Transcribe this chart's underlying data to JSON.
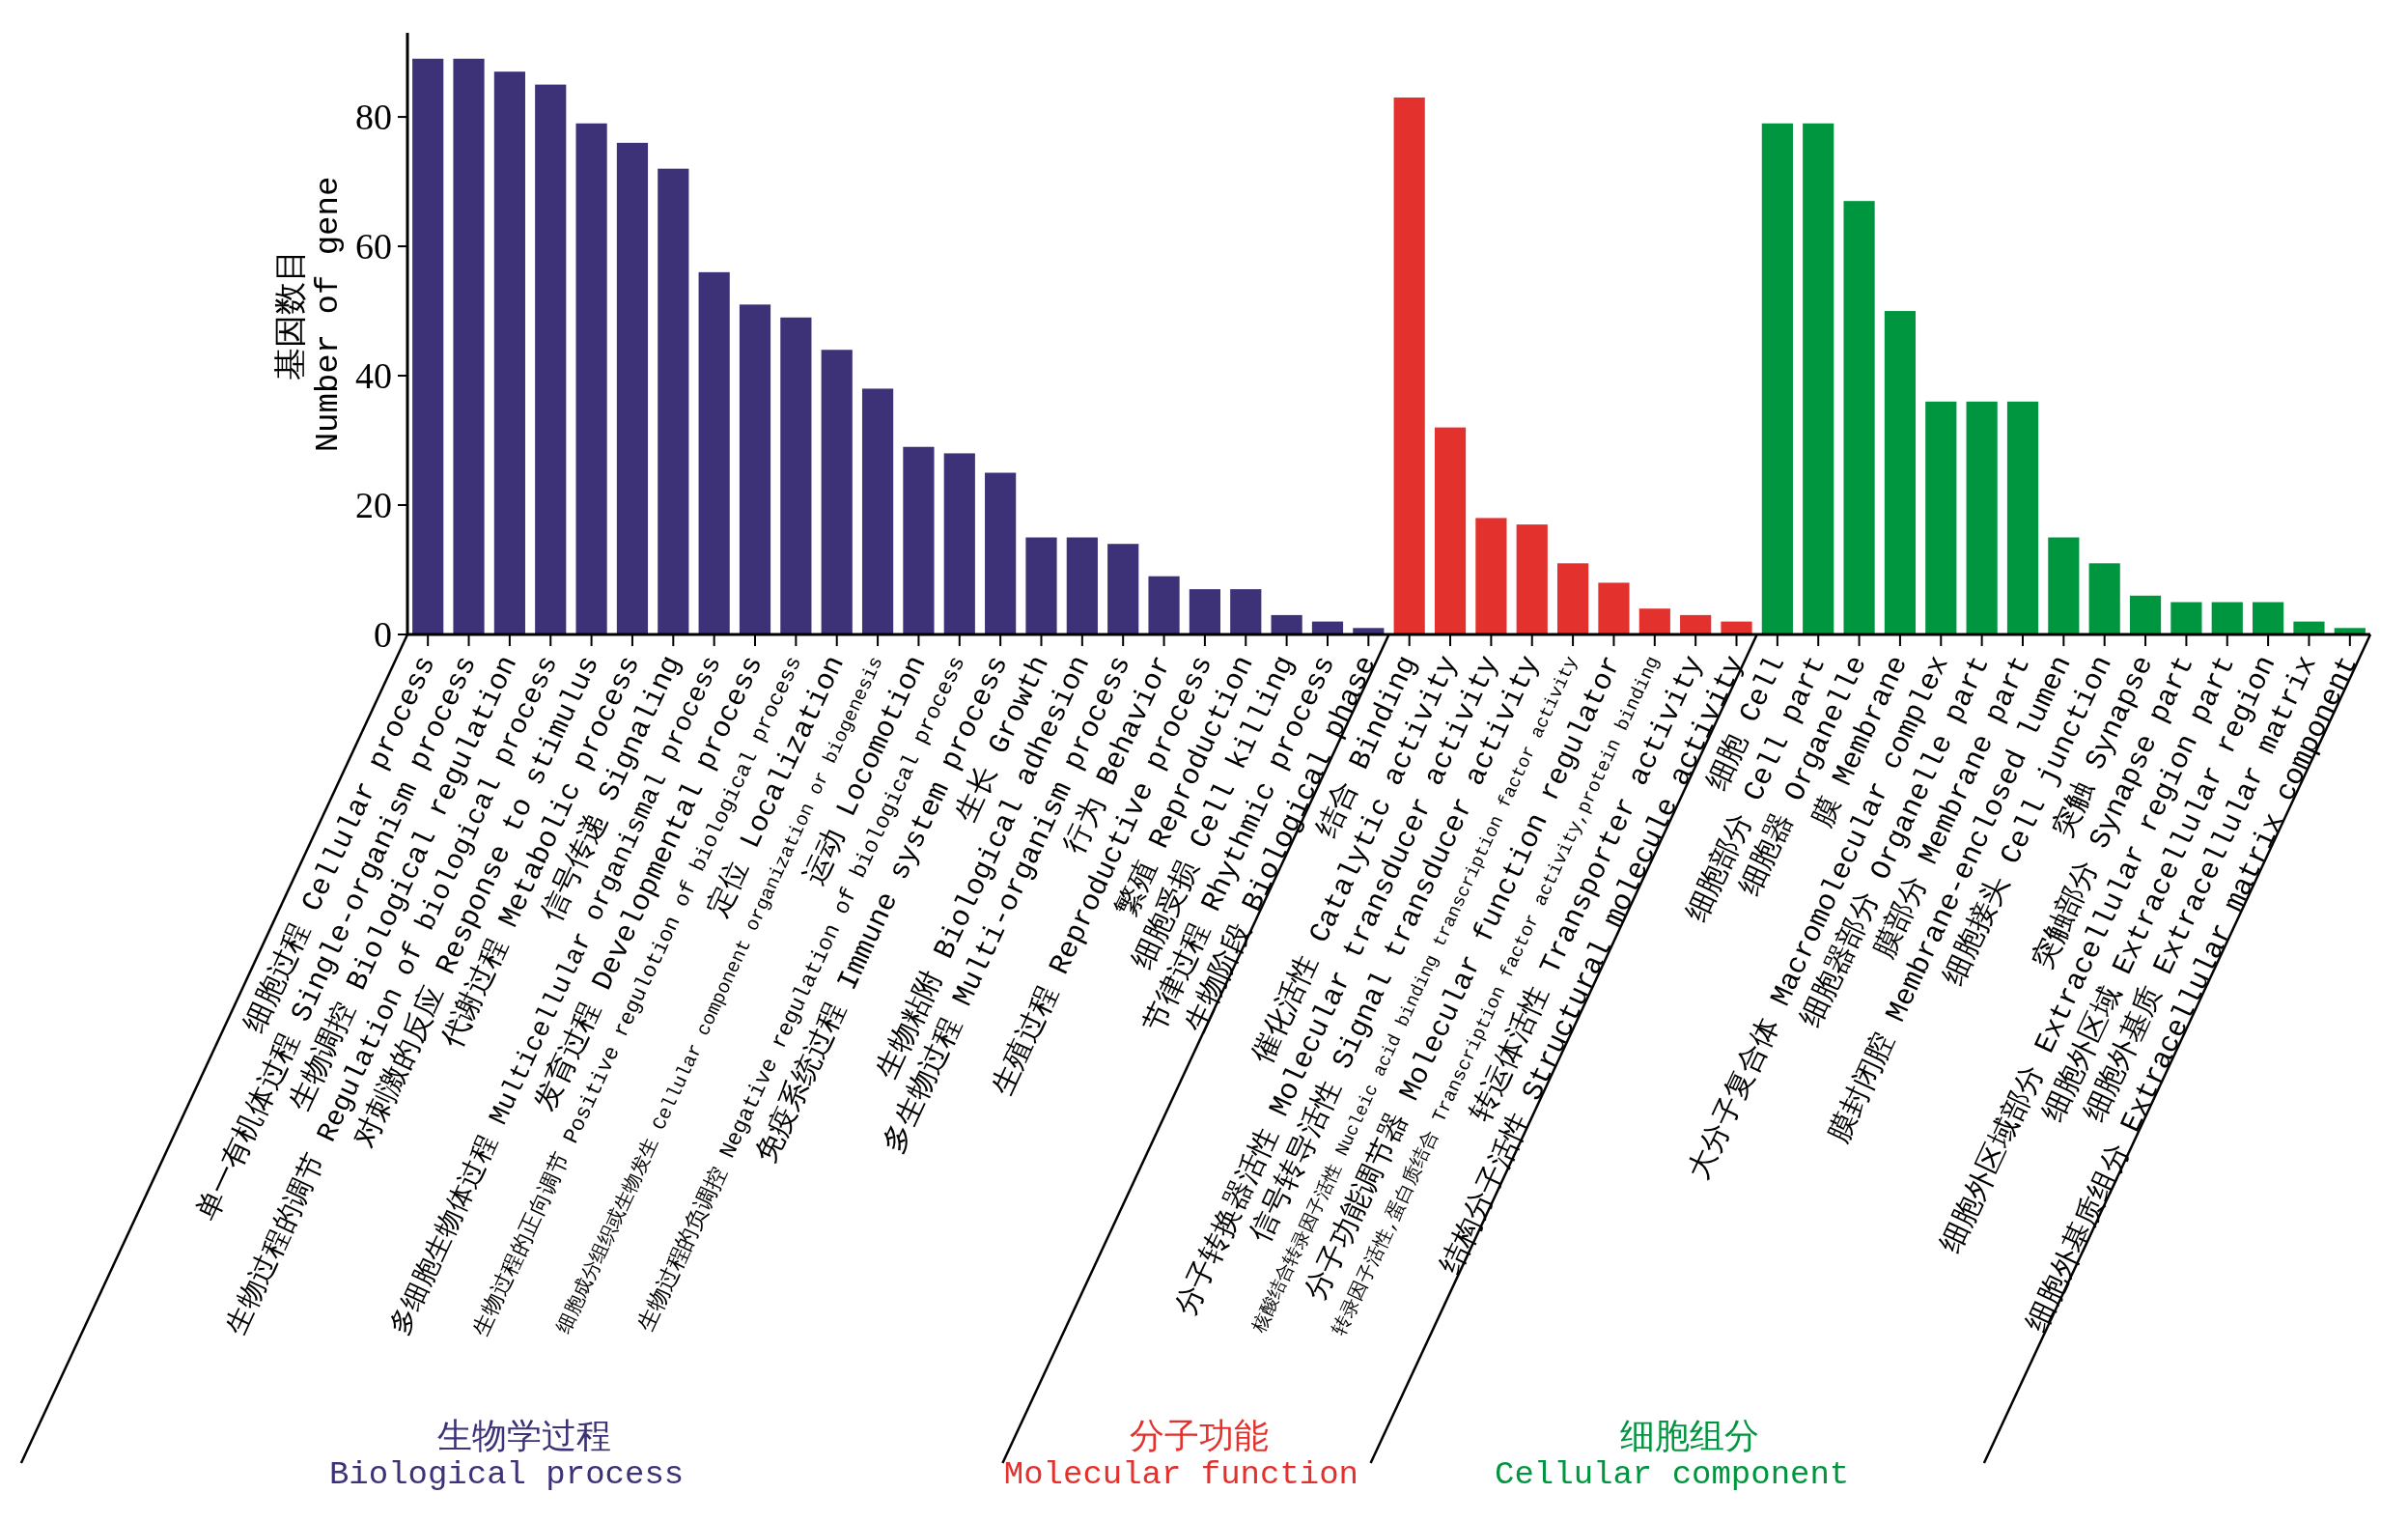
{
  "chart_data": {
    "type": "bar",
    "stacked": true,
    "ylabel": "基因数目\nNumber of gene",
    "ylim": [
      0,
      93
    ],
    "yticks": [
      0,
      20,
      40,
      60,
      80
    ],
    "categories": [
      "细胞过程 Cellular process",
      "单一有机体过程 Single-organism process",
      "生物调控 Biological regulation",
      "生物过程的调节 Regulation of biological process",
      "对刺激的反应 Response to stimulus",
      "代谢过程 Metabolic process",
      "信号传递 Signaling",
      "多细胞生物体过程 Multicellular organismal process",
      "发育过程 Developmental process",
      "生物过程的正向调节 Positive regulotion of biological process",
      "定位 Localization",
      "细胞成分组织或生物发生 Cellular component organization or biogenesis",
      "运动 Locomotion",
      "生物过程的负调控 Negative regulation of biological process",
      "免疫系统过程 Immune system process",
      "生长 Growth",
      "生物粘附 Biological adhesion",
      "多生物过程 Multi-organism process",
      "行为 Behavior",
      "生殖过程 Reproductive process",
      "繁殖 Reproduction",
      "细胞受损 Cell killing",
      "节律过程 Rhythmic process",
      "生物阶段 Biological phase",
      "结合 Binding",
      "催化活性 Catalytic activity",
      "分子转换器活性 Molecular transducer activity",
      "信号转导活性 Signal transducer activity",
      "核酸结合转录因子活性 Nucleic acid binding transcription factor activity",
      "分子功能调节器 Molecular function regulator",
      "转录因子活性,蛋白质结合 Transcription factor activity,protein binding",
      "转运体活性 Transporter activity",
      "结构分子活性 Structural molecule activity",
      "细胞 Cell",
      "细胞部分 Cell part",
      "细胞器 Organelle",
      "膜 Membrane",
      "大分子复合体 Macromolecular complex",
      "细胞器部分 Organelle part",
      "膜部分 Membrane part",
      "膜封闭腔 Membrane-enclosed lumen",
      "细胞接头 Cell junction",
      "突触 Synapse",
      "突触部分 Synapse part",
      "细胞外区域部分 Extracellular region part",
      "细胞外区域 Extracellular region",
      "细胞外基质 Extracellular matrix",
      "细胞外基质组分 Extracellular matrix component"
    ],
    "series": [
      {
        "name": "生物学过程\nBiological process",
        "color": "#3d3277",
        "values": [
          89,
          89,
          87,
          85,
          79,
          76,
          72,
          56,
          51,
          49,
          44,
          38,
          29,
          28,
          25,
          15,
          15,
          14,
          9,
          7,
          7,
          3,
          2,
          1,
          null,
          null,
          null,
          null,
          null,
          null,
          null,
          null,
          null,
          null,
          null,
          null,
          null,
          null,
          null,
          null,
          null,
          null,
          null,
          null,
          null,
          null,
          null,
          null
        ]
      },
      {
        "name": "分子功能\nMolecular function",
        "color": "#e3312d",
        "values": [
          null,
          null,
          null,
          null,
          null,
          null,
          null,
          null,
          null,
          null,
          null,
          null,
          null,
          null,
          null,
          null,
          null,
          null,
          null,
          null,
          null,
          null,
          null,
          null,
          83,
          32,
          18,
          17,
          11,
          8,
          4,
          3,
          2,
          null,
          null,
          null,
          null,
          null,
          null,
          null,
          null,
          null,
          null,
          null,
          null,
          null,
          null,
          null
        ]
      },
      {
        "name": "细胞组分\nCellular component",
        "color": "#00963f",
        "values": [
          null,
          null,
          null,
          null,
          null,
          null,
          null,
          null,
          null,
          null,
          null,
          null,
          null,
          null,
          null,
          null,
          null,
          null,
          null,
          null,
          null,
          null,
          null,
          null,
          null,
          null,
          null,
          null,
          null,
          null,
          null,
          null,
          null,
          79,
          79,
          67,
          50,
          36,
          36,
          36,
          15,
          11,
          6,
          5,
          5,
          5,
          2,
          1
        ]
      }
    ]
  }
}
